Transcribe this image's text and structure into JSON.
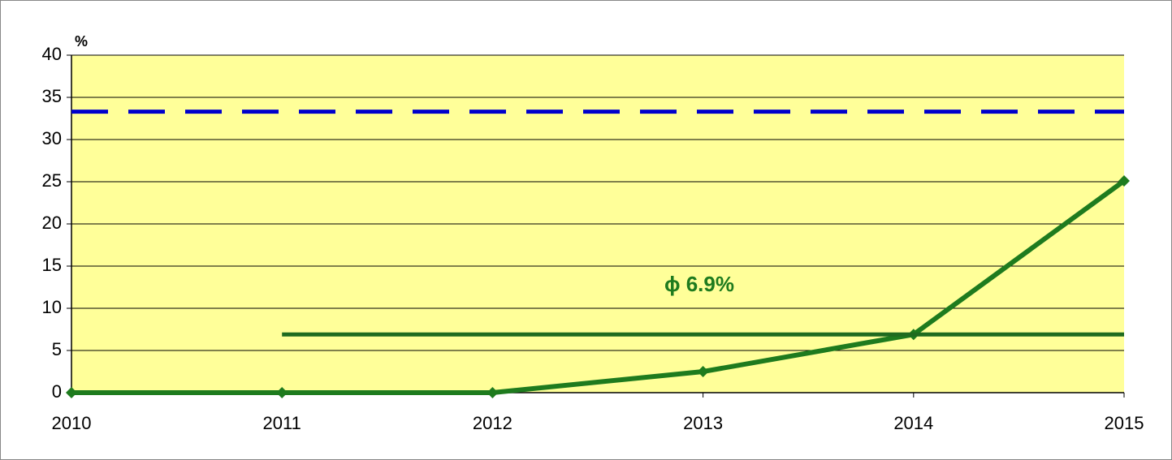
{
  "chart_data": {
    "type": "line",
    "y_label": "%",
    "x": [
      2010,
      2011,
      2012,
      2013,
      2014,
      2015
    ],
    "xlim": [
      2010,
      2015
    ],
    "xticks": [
      2010,
      2011,
      2012,
      2013,
      2014,
      2015
    ],
    "ylim": [
      0,
      40
    ],
    "yticks": [
      0,
      5,
      10,
      15,
      20,
      25,
      30,
      35,
      40
    ],
    "grid": true,
    "plot_background": "#ffff99",
    "series": [
      {
        "color": "#1e7b1e",
        "style": "solid",
        "marker": "diamond",
        "values": [
          0,
          0,
          0,
          2.5,
          6.9,
          25.1
        ]
      },
      {
        "color": "#1f6b1f",
        "style": "solid",
        "values": [
          null,
          6.9,
          6.9,
          6.9,
          6.9,
          6.9
        ]
      },
      {
        "color": "#0000cc",
        "style": "dashed",
        "values": [
          33.3,
          33.3,
          33.3,
          33.3,
          33.3,
          33.3
        ]
      }
    ],
    "annotation": {
      "text": "ϕ 6.9%",
      "color": "#1e7b1e"
    }
  }
}
